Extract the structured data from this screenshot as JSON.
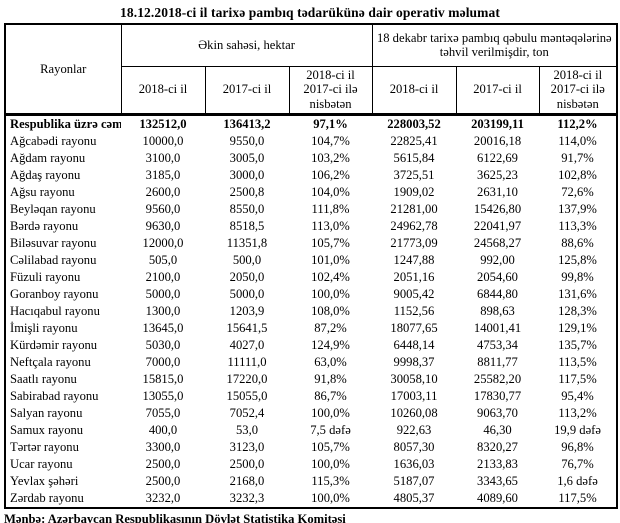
{
  "title": "18.12.2018-ci il tarixə pambıq tədarükünə dair operativ məlumat",
  "table": {
    "header": {
      "rayonlar": "Rayonlar",
      "group_sown_area": "Əkin sahəsi, hektar",
      "group_delivered": "18 dekabr tarixə pambıq qəbulu məntəqələrinə təhvil verilmişdir, ton",
      "sub": [
        "2018-ci il",
        "2017-ci il",
        "2018-ci il 2017-ci ilə nisbətən",
        "2018-ci il",
        "2017-ci il",
        "2018-ci il 2017-ci ilə nisbətən"
      ]
    },
    "rows": [
      {
        "name": "Respublika üzrə cəmi",
        "is_total": true,
        "values": [
          "132512,0",
          "136413,2",
          "97,1%",
          "228003,52",
          "203199,11",
          "112,2%"
        ]
      },
      {
        "name": "Ağcabədi rayonu",
        "is_total": false,
        "values": [
          "10000,0",
          "9550,0",
          "104,7%",
          "22825,41",
          "20016,18",
          "114,0%"
        ]
      },
      {
        "name": "Ağdam rayonu",
        "is_total": false,
        "values": [
          "3100,0",
          "3005,0",
          "103,2%",
          "5615,84",
          "6122,69",
          "91,7%"
        ]
      },
      {
        "name": "Ağdaş rayonu",
        "is_total": false,
        "values": [
          "3185,0",
          "3000,0",
          "106,2%",
          "3725,51",
          "3625,23",
          "102,8%"
        ]
      },
      {
        "name": "Ağsu rayonu",
        "is_total": false,
        "values": [
          "2600,0",
          "2500,8",
          "104,0%",
          "1909,02",
          "2631,10",
          "72,6%"
        ]
      },
      {
        "name": "Beyləqan rayonu",
        "is_total": false,
        "values": [
          "9560,0",
          "8550,0",
          "111,8%",
          "21281,00",
          "15426,80",
          "137,9%"
        ]
      },
      {
        "name": "Bərdə rayonu",
        "is_total": false,
        "values": [
          "9630,0",
          "8518,5",
          "113,0%",
          "24962,78",
          "22041,97",
          "113,3%"
        ]
      },
      {
        "name": "Biləsuvar rayonu",
        "is_total": false,
        "values": [
          "12000,0",
          "11351,8",
          "105,7%",
          "21773,09",
          "24568,27",
          "88,6%"
        ]
      },
      {
        "name": "Cəlilabad rayonu",
        "is_total": false,
        "values": [
          "505,0",
          "500,0",
          "101,0%",
          "1247,88",
          "992,00",
          "125,8%"
        ]
      },
      {
        "name": "Füzuli rayonu",
        "is_total": false,
        "values": [
          "2100,0",
          "2050,0",
          "102,4%",
          "2051,16",
          "2054,60",
          "99,8%"
        ]
      },
      {
        "name": "Goranboy rayonu",
        "is_total": false,
        "values": [
          "5000,0",
          "5000,0",
          "100,0%",
          "9005,42",
          "6844,80",
          "131,6%"
        ]
      },
      {
        "name": "Hacıqabul rayonu",
        "is_total": false,
        "values": [
          "1300,0",
          "1203,9",
          "108,0%",
          "1152,56",
          "898,63",
          "128,3%"
        ]
      },
      {
        "name": "İmişli rayonu",
        "is_total": false,
        "values": [
          "13645,0",
          "15641,5",
          "87,2%",
          "18077,65",
          "14001,41",
          "129,1%"
        ]
      },
      {
        "name": "Kürdəmir rayonu",
        "is_total": false,
        "values": [
          "5030,0",
          "4027,0",
          "124,9%",
          "6448,14",
          "4753,34",
          "135,7%"
        ]
      },
      {
        "name": "Neftçala rayonu",
        "is_total": false,
        "values": [
          "7000,0",
          "11111,0",
          "63,0%",
          "9998,37",
          "8811,77",
          "113,5%"
        ]
      },
      {
        "name": "Saatlı rayonu",
        "is_total": false,
        "values": [
          "15815,0",
          "17220,0",
          "91,8%",
          "30058,10",
          "25582,20",
          "117,5%"
        ]
      },
      {
        "name": "Sabirabad rayonu",
        "is_total": false,
        "values": [
          "13055,0",
          "15055,0",
          "86,7%",
          "17003,11",
          "17830,77",
          "95,4%"
        ]
      },
      {
        "name": "Salyan rayonu",
        "is_total": false,
        "values": [
          "7055,0",
          "7052,4",
          "100,0%",
          "10260,08",
          "9063,70",
          "113,2%"
        ]
      },
      {
        "name": "Samux rayonu",
        "is_total": false,
        "values": [
          "400,0",
          "53,0",
          "7,5 dəfə",
          "922,63",
          "46,30",
          "19,9 dəfə"
        ]
      },
      {
        "name": "Tərtər rayonu",
        "is_total": false,
        "values": [
          "3300,0",
          "3123,0",
          "105,7%",
          "8057,30",
          "8320,27",
          "96,8%"
        ]
      },
      {
        "name": "Ucar rayonu",
        "is_total": false,
        "values": [
          "2500,0",
          "2500,0",
          "100,0%",
          "1636,03",
          "2133,83",
          "76,7%"
        ]
      },
      {
        "name": "Yevlax şəhəri",
        "is_total": false,
        "values": [
          "2500,0",
          "2168,0",
          "115,3%",
          "5187,07",
          "3343,65",
          "1,6 dəfə"
        ]
      },
      {
        "name": "Zərdab rayonu",
        "is_total": false,
        "values": [
          "3232,0",
          "3232,3",
          "100,0%",
          "4805,37",
          "4089,60",
          "117,5%"
        ]
      }
    ]
  },
  "footer": {
    "source": "Mənbə: Azərbaycan Respublikasının Dövlət Statistika Komitəsi"
  }
}
